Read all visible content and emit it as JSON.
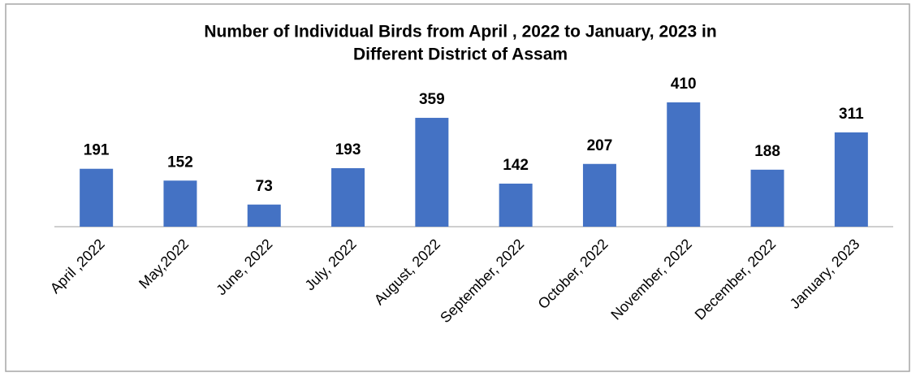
{
  "chart_data": {
    "type": "bar",
    "title": [
      "Number of Individual Birds  from April , 2022 to January, 2023 in",
      "Different District of Assam"
    ],
    "categories": [
      "April ,2022",
      "May,2022",
      "June, 2022",
      "July, 2022",
      "August, 2022",
      "September, 2022",
      "October, 2022",
      "November, 2022",
      "December, 2022",
      "January, 2023"
    ],
    "values": [
      191,
      152,
      73,
      193,
      359,
      142,
      207,
      410,
      188,
      311
    ],
    "color": "#4472c4",
    "grid": false
  }
}
